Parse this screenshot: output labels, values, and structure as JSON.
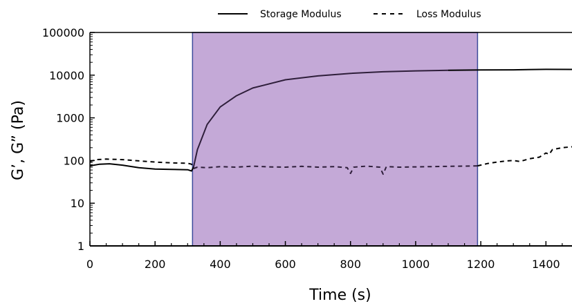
{
  "chart_data": {
    "type": "line",
    "xlabel": "Time (s)",
    "ylabel": "G’, G” (Pa)",
    "xlim": [
      0,
      1480
    ],
    "ylim": [
      1,
      100000
    ],
    "y_scale": "log",
    "x_ticks": [
      0,
      200,
      400,
      600,
      800,
      1000,
      1200,
      1400
    ],
    "x_tick_labels": [
      "0",
      "200",
      "400",
      "600",
      "800",
      "1000",
      "1200",
      "1400"
    ],
    "y_ticks": [
      1,
      10,
      100,
      1000,
      10000,
      100000
    ],
    "y_tick_labels": [
      "1",
      "10",
      "100",
      "1000",
      "10000",
      "100000"
    ],
    "grid": false,
    "legend_position": "top-center",
    "shaded_region": {
      "x_start": 315,
      "x_end": 1190,
      "color": "#c4a9d7",
      "border_color": "#3b4a9a"
    },
    "colors": {
      "series": "#000000",
      "inside_region": "#2e1e3a"
    },
    "series": [
      {
        "name": "Storage Modulus",
        "style": "solid",
        "x": [
          0,
          30,
          60,
          100,
          150,
          200,
          250,
          300,
          312,
          318,
          330,
          360,
          400,
          450,
          500,
          600,
          700,
          800,
          900,
          1000,
          1100,
          1200,
          1300,
          1400,
          1480
        ],
        "y": [
          75,
          82,
          84,
          78,
          68,
          63,
          62,
          61,
          57,
          70,
          180,
          700,
          1800,
          3300,
          5000,
          7800,
          9600,
          11000,
          12000,
          12600,
          13000,
          13200,
          13300,
          13700,
          13600
        ]
      },
      {
        "name": "Loss Modulus",
        "style": "dashed",
        "x": [
          0,
          20,
          50,
          100,
          150,
          200,
          250,
          300,
          312,
          318,
          330,
          360,
          400,
          450,
          500,
          550,
          600,
          650,
          700,
          750,
          790,
          800,
          810,
          850,
          890,
          900,
          910,
          950,
          1000,
          1050,
          1100,
          1150,
          1190,
          1220,
          1250,
          1280,
          1300,
          1320,
          1350,
          1380,
          1400,
          1410,
          1420,
          1450,
          1480
        ],
        "y": [
          95,
          105,
          108,
          105,
          98,
          92,
          88,
          86,
          82,
          65,
          70,
          68,
          72,
          70,
          74,
          71,
          70,
          73,
          70,
          72,
          68,
          50,
          70,
          74,
          70,
          48,
          72,
          70,
          71,
          72,
          73,
          74,
          75,
          85,
          92,
          98,
          100,
          95,
          110,
          120,
          150,
          140,
          180,
          200,
          210
        ]
      }
    ]
  }
}
